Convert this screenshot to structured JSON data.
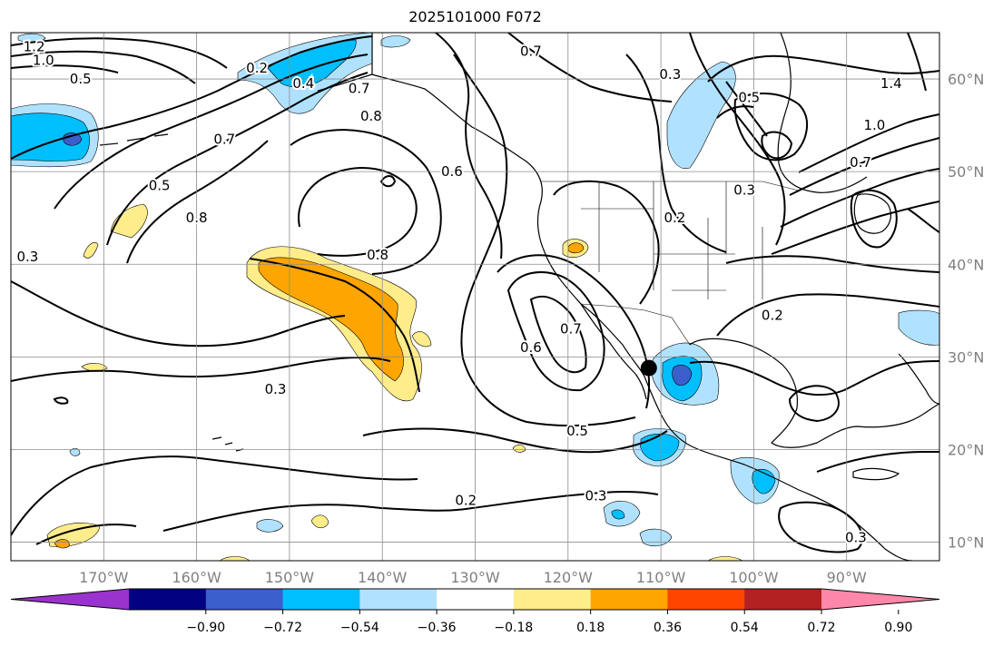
{
  "title": "2025101000 F072",
  "colors": {
    "land": "#ffffff",
    "grid": "#8c8c8c",
    "contour": "#000000",
    "neg_extreme": "#9a32cd",
    "pos_extreme": "#ff88aa"
  },
  "map": {
    "lon_range": [
      -180,
      -80
    ],
    "lat_range": [
      8,
      65
    ],
    "lon_ticks": [
      {
        "value": -170,
        "label": "170°W"
      },
      {
        "value": -160,
        "label": "160°W"
      },
      {
        "value": -150,
        "label": "150°W"
      },
      {
        "value": -140,
        "label": "140°W"
      },
      {
        "value": -130,
        "label": "130°W"
      },
      {
        "value": -120,
        "label": "120°W"
      },
      {
        "value": -110,
        "label": "110°W"
      },
      {
        "value": -100,
        "label": "100°W"
      },
      {
        "value": -90,
        "label": "90°W"
      }
    ],
    "lat_ticks": [
      {
        "value": 60,
        "label": "60°N"
      },
      {
        "value": 50,
        "label": "50°N"
      },
      {
        "value": 40,
        "label": "40°N"
      },
      {
        "value": 30,
        "label": "30°N"
      },
      {
        "value": 20,
        "label": "20°N"
      },
      {
        "value": 10,
        "label": "10°N"
      }
    ],
    "marker": {
      "lon": -111.3,
      "lat": 28.8
    },
    "contour_labels": [
      {
        "text": "0.2",
        "lon": -153.5,
        "lat": 61.2
      },
      {
        "text": "0.4",
        "lon": -148.5,
        "lat": 59.5
      },
      {
        "text": "0.7",
        "lon": -142.5,
        "lat": 59.0
      },
      {
        "text": "0.8",
        "lon": -141.2,
        "lat": 56.0
      },
      {
        "text": "0.7",
        "lon": -157.0,
        "lat": 53.5
      },
      {
        "text": "0.5",
        "lon": -164.0,
        "lat": 48.5
      },
      {
        "text": "0.8",
        "lon": -160.0,
        "lat": 45.0
      },
      {
        "text": "0.8",
        "lon": -140.5,
        "lat": 41.0
      },
      {
        "text": "0.3",
        "lon": -178.2,
        "lat": 40.8
      },
      {
        "text": "0.3",
        "lon": -151.5,
        "lat": 26.5
      },
      {
        "text": "0.2",
        "lon": -131.0,
        "lat": 14.5
      },
      {
        "text": "0.3",
        "lon": -117.0,
        "lat": 15.0
      },
      {
        "text": "0.5",
        "lon": -119.0,
        "lat": 22.0
      },
      {
        "text": "0.6",
        "lon": -124.0,
        "lat": 31.0
      },
      {
        "text": "0.7",
        "lon": -119.7,
        "lat": 33.0
      },
      {
        "text": "0.6",
        "lon": -132.5,
        "lat": 50.0
      },
      {
        "text": "0.7",
        "lon": -124.0,
        "lat": 63.0
      },
      {
        "text": "0.3",
        "lon": -109.0,
        "lat": 60.5
      },
      {
        "text": "0.2",
        "lon": -108.5,
        "lat": 45.0
      },
      {
        "text": "0.3",
        "lon": -101.0,
        "lat": 48.0
      },
      {
        "text": "0.2",
        "lon": -98.0,
        "lat": 34.5
      },
      {
        "text": "0.5",
        "lon": -100.5,
        "lat": 58.0
      },
      {
        "text": "1.4",
        "lon": -85.2,
        "lat": 59.5
      },
      {
        "text": "1.0",
        "lon": -87.0,
        "lat": 55.0
      },
      {
        "text": "0.7",
        "lon": -88.5,
        "lat": 51.0
      },
      {
        "text": "0.3",
        "lon": -89.0,
        "lat": 10.5
      },
      {
        "text": "1.2",
        "lon": -177.5,
        "lat": 63.5
      },
      {
        "text": "1.0",
        "lon": -176.5,
        "lat": 62.0
      },
      {
        "text": "0.5",
        "lon": -172.5,
        "lat": 60.0
      }
    ]
  },
  "colorbar": {
    "bin_colors": [
      "#9a32cd",
      "#000080",
      "#3a5fcd",
      "#00bfff",
      "#b0e2ff",
      "#ffffff",
      "#ffec8b",
      "#ffa500",
      "#ff4500",
      "#b22222",
      "#ff88aa"
    ],
    "tick_labels": [
      "−0.90",
      "−0.72",
      "−0.54",
      "−0.36",
      "−0.18",
      "0.18",
      "0.36",
      "0.54",
      "0.72",
      "0.90"
    ]
  }
}
